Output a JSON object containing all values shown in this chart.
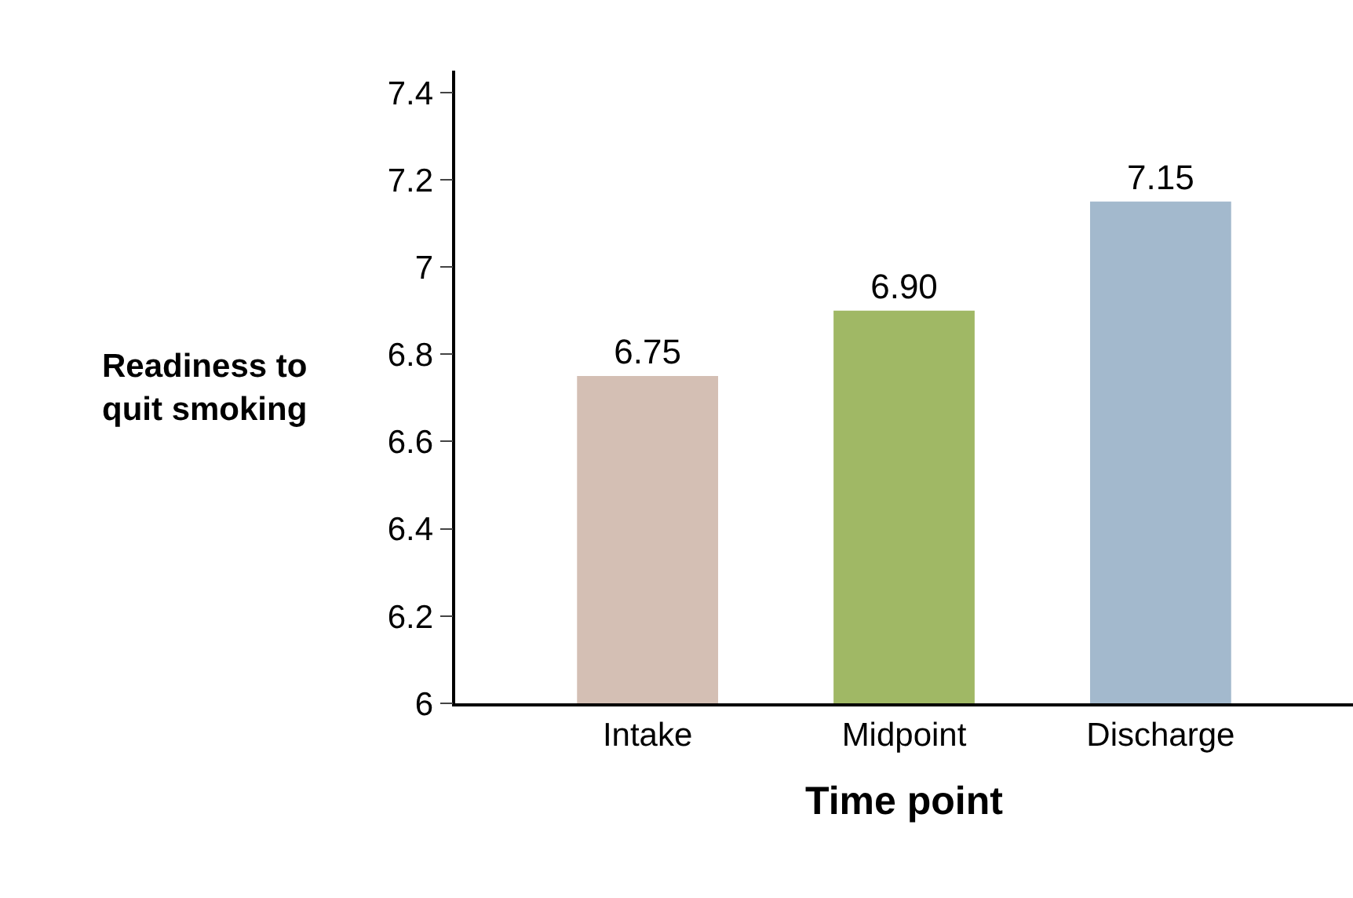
{
  "chart_data": {
    "type": "bar",
    "xlabel": "Time point",
    "ylabel": "Readiness to\nquit smoking",
    "categories": [
      "Intake",
      "Midpoint",
      "Discharge"
    ],
    "values": [
      6.75,
      6.9,
      7.15
    ],
    "value_labels": [
      "6.75",
      "6.90",
      "7.15"
    ],
    "colors": [
      "#d4bfb4",
      "#a0b865",
      "#a3b9cd"
    ],
    "ylim": [
      6,
      7.45
    ],
    "yticks": [
      6,
      6.2,
      6.4,
      6.6,
      6.8,
      7,
      7.2,
      7.4
    ]
  }
}
